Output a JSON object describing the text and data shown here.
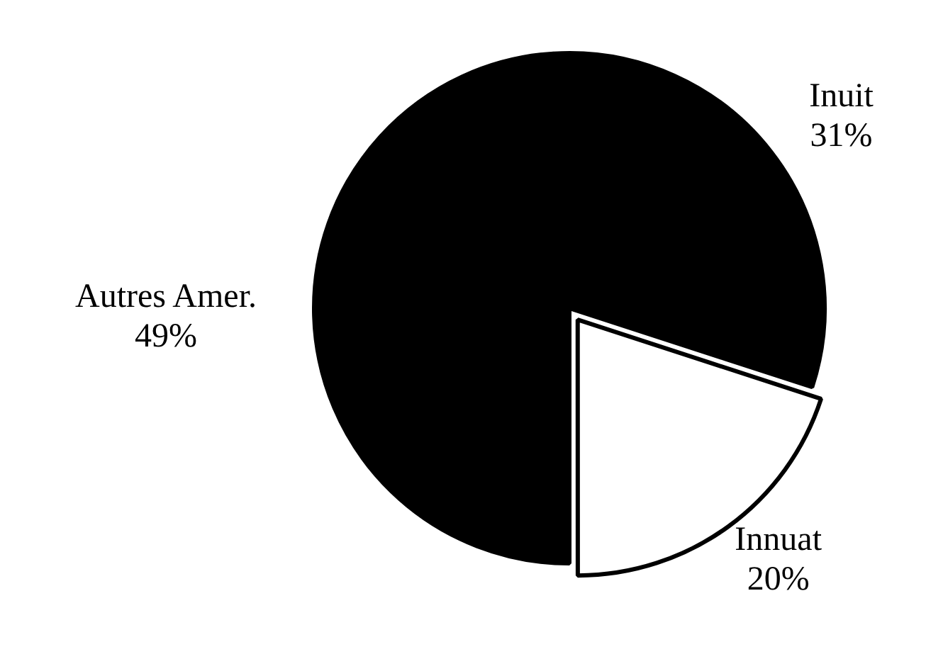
{
  "chart_data": {
    "type": "pie",
    "categories": [
      "Inuit",
      "Innuat",
      "Autres Amer."
    ],
    "values": [
      31,
      20,
      49
    ],
    "colors": [
      "#000000",
      "#ffffff",
      "#000000"
    ],
    "value_labels": [
      "31%",
      "20%",
      "49%"
    ],
    "legend": false
  }
}
